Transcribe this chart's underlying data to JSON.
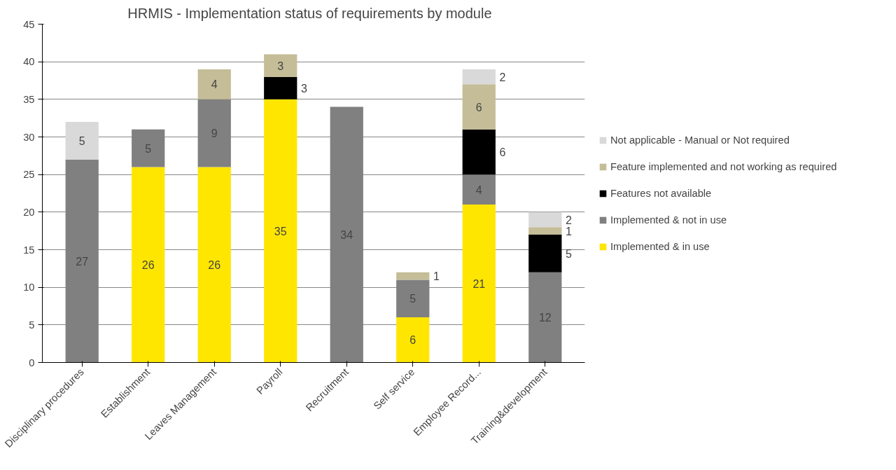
{
  "chart_data": {
    "type": "bar",
    "title": "HRMIS - Implementation  status of requirements  by module",
    "categories": [
      "Disciplinary procedures",
      "Establishment",
      "Leaves Management",
      "Payroll",
      "Recruitment",
      "Self service",
      "Employee Record...",
      "Training&development"
    ],
    "stacked": true,
    "series": [
      {
        "name": "Implemented & in use",
        "color": "#ffe600",
        "values": [
          0,
          26,
          26,
          35,
          0,
          6,
          21,
          0
        ],
        "value_labels": [
          null,
          "26",
          "26",
          "35",
          null,
          "6",
          "21",
          null
        ]
      },
      {
        "name": "Implemented & not in use",
        "color": "#808080",
        "values": [
          27,
          5,
          9,
          0,
          34,
          5,
          4,
          12
        ],
        "value_labels": [
          "27",
          "5",
          "9",
          null,
          "34",
          "5",
          "4",
          "12"
        ]
      },
      {
        "name": "Features not available",
        "color": "#000000",
        "values": [
          0,
          0,
          0,
          3,
          0,
          0,
          6,
          5
        ],
        "value_labels": [
          null,
          null,
          null,
          "3",
          null,
          null,
          "6",
          "5"
        ]
      },
      {
        "name": "Feature implemented and not working as required",
        "color": "#c4bd97",
        "values": [
          0,
          0,
          4,
          3,
          0,
          1,
          6,
          1
        ],
        "value_labels": [
          null,
          null,
          "4",
          "3",
          null,
          "1",
          "6",
          "1"
        ]
      },
      {
        "name": "Not applicable - Manual or Not required",
        "color": "#d9d9d9",
        "values": [
          5,
          0,
          0,
          0,
          0,
          0,
          2,
          2
        ],
        "value_labels": [
          "5",
          null,
          null,
          null,
          null,
          null,
          "2",
          "2"
        ]
      }
    ],
    "ylim": [
      0,
      45
    ],
    "yticks": [
      0,
      5,
      10,
      15,
      20,
      25,
      30,
      35,
      40,
      45
    ],
    "grid": "y",
    "legend": "right"
  }
}
